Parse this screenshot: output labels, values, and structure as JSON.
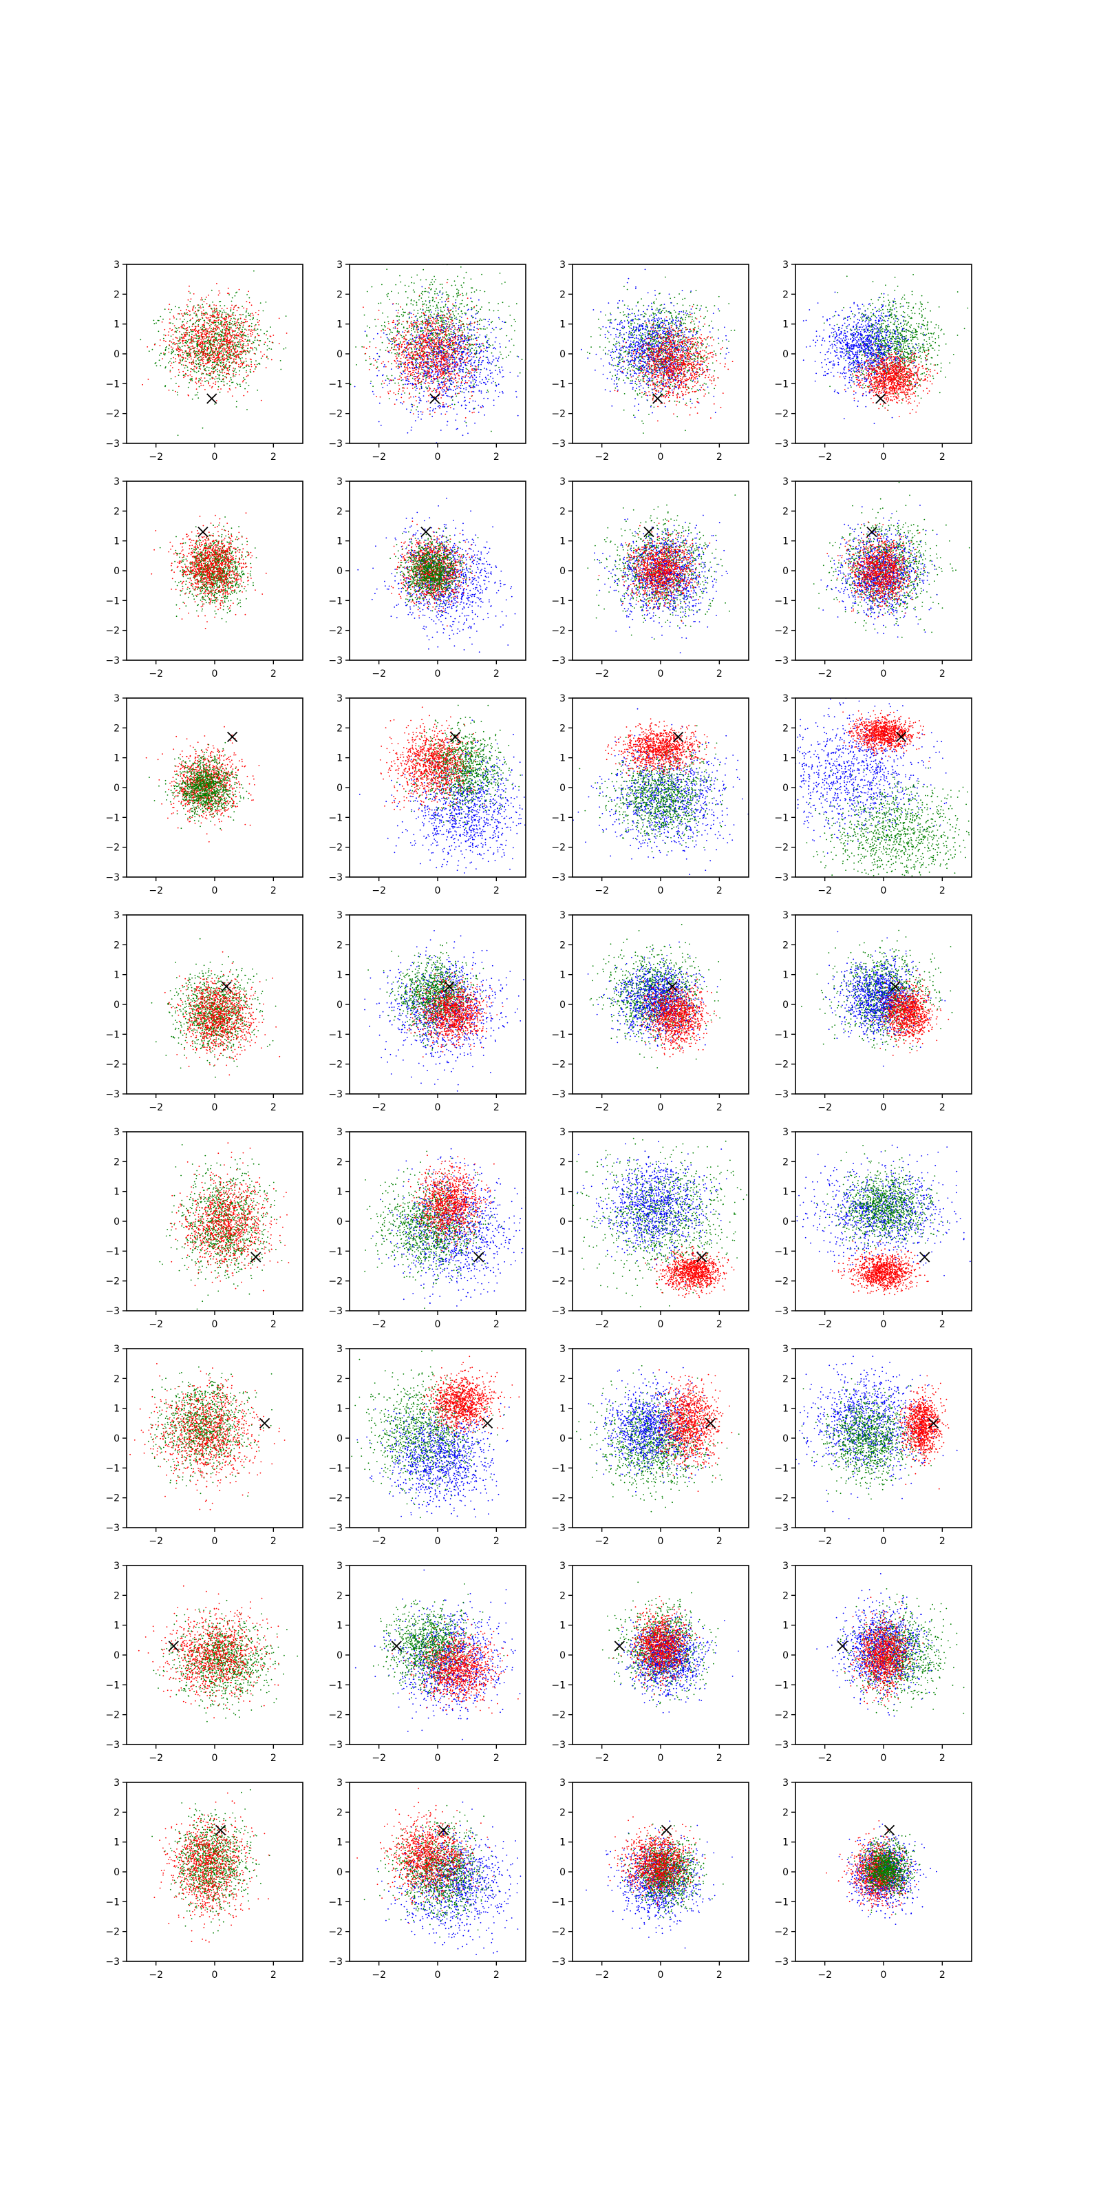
{
  "figure": {
    "layout": {
      "rows": 8,
      "cols": 4
    },
    "axis_style": {
      "grid": false,
      "legend": "none",
      "marker_symbol": "x"
    },
    "colors": {
      "red": "#ff0000",
      "green": "#008000",
      "blue": "#0000ff",
      "marker": "#000000"
    }
  },
  "chart_data": {
    "type": "scatter",
    "xlim": [
      -3,
      3
    ],
    "ylim": [
      -3,
      3
    ],
    "xticks": [
      -2,
      0,
      2
    ],
    "yticks": [
      -3,
      -2,
      -1,
      0,
      1,
      2,
      3
    ],
    "xtick_labels": [
      "−2",
      "0",
      "2"
    ],
    "ytick_labels": [
      "−3",
      "−2",
      "−1",
      "0",
      "1",
      "2",
      "3"
    ],
    "rows": [
      {
        "marker": [
          -0.1,
          -1.5
        ],
        "panels": [
          {
            "clusters": [
              {
                "color": "green",
                "cx": 0.0,
                "cy": 0.3,
                "sx": 0.95,
                "sy": 0.85
              },
              {
                "color": "red",
                "cx": 0.0,
                "cy": 0.4,
                "sx": 0.9,
                "sy": 0.8
              }
            ]
          },
          {
            "clusters": [
              {
                "color": "green",
                "cx": 0.0,
                "cy": 0.6,
                "sx": 1.3,
                "sy": 1.1
              },
              {
                "color": "blue",
                "cx": 0.3,
                "cy": -0.3,
                "sx": 1.1,
                "sy": 1.0
              },
              {
                "color": "red",
                "cx": -0.2,
                "cy": 0.0,
                "sx": 0.85,
                "sy": 0.85
              }
            ]
          },
          {
            "clusters": [
              {
                "color": "green",
                "cx": 0.0,
                "cy": 0.2,
                "sx": 1.0,
                "sy": 0.95
              },
              {
                "color": "blue",
                "cx": -0.2,
                "cy": 0.1,
                "sx": 0.9,
                "sy": 0.85
              },
              {
                "color": "red",
                "cx": 0.5,
                "cy": -0.3,
                "sx": 0.75,
                "sy": 0.7
              }
            ]
          },
          {
            "clusters": [
              {
                "color": "green",
                "cx": 0.4,
                "cy": 0.3,
                "sx": 0.9,
                "sy": 0.85
              },
              {
                "color": "blue",
                "cx": -0.6,
                "cy": 0.2,
                "sx": 0.8,
                "sy": 0.75
              },
              {
                "color": "red",
                "cx": 0.3,
                "cy": -0.8,
                "sx": 0.6,
                "sy": 0.45
              }
            ]
          }
        ]
      },
      {
        "marker": [
          -0.4,
          1.3
        ],
        "panels": [
          {
            "clusters": [
              {
                "color": "green",
                "cx": 0.0,
                "cy": 0.0,
                "sx": 0.6,
                "sy": 0.65
              },
              {
                "color": "red",
                "cx": -0.1,
                "cy": 0.1,
                "sx": 0.65,
                "sy": 0.7
              }
            ]
          },
          {
            "clusters": [
              {
                "color": "blue",
                "cx": 0.3,
                "cy": -0.3,
                "sx": 1.0,
                "sy": 0.95
              },
              {
                "color": "red",
                "cx": -0.2,
                "cy": 0.0,
                "sx": 0.6,
                "sy": 0.6
              },
              {
                "color": "green",
                "cx": -0.2,
                "cy": 0.0,
                "sx": 0.55,
                "sy": 0.55
              }
            ]
          },
          {
            "clusters": [
              {
                "color": "green",
                "cx": 0.0,
                "cy": 0.1,
                "sx": 0.95,
                "sy": 0.9
              },
              {
                "color": "blue",
                "cx": 0.1,
                "cy": -0.2,
                "sx": 0.9,
                "sy": 0.85
              },
              {
                "color": "red",
                "cx": 0.0,
                "cy": 0.0,
                "sx": 0.6,
                "sy": 0.6
              }
            ]
          },
          {
            "clusters": [
              {
                "color": "green",
                "cx": 0.1,
                "cy": 0.1,
                "sx": 0.9,
                "sy": 0.9
              },
              {
                "color": "blue",
                "cx": -0.1,
                "cy": -0.1,
                "sx": 0.8,
                "sy": 0.8
              },
              {
                "color": "red",
                "cx": -0.1,
                "cy": 0.0,
                "sx": 0.55,
                "sy": 0.6
              }
            ]
          }
        ]
      },
      {
        "marker": [
          0.6,
          1.7
        ],
        "panels": [
          {
            "clusters": [
              {
                "color": "red",
                "cx": -0.3,
                "cy": 0.1,
                "sx": 0.65,
                "sy": 0.65
              },
              {
                "color": "green",
                "cx": -0.3,
                "cy": 0.0,
                "sx": 0.55,
                "sy": 0.55
              }
            ]
          },
          {
            "clusters": [
              {
                "color": "blue",
                "cx": 1.0,
                "cy": -0.8,
                "sx": 1.1,
                "sy": 1.0
              },
              {
                "color": "green",
                "cx": 0.9,
                "cy": 0.6,
                "sx": 0.8,
                "sy": 0.8
              },
              {
                "color": "red",
                "cx": -0.2,
                "cy": 0.8,
                "sx": 0.75,
                "sy": 0.7
              }
            ]
          },
          {
            "clusters": [
              {
                "color": "blue",
                "cx": 0.3,
                "cy": -0.3,
                "sx": 1.2,
                "sy": 1.0
              },
              {
                "color": "green",
                "cx": 0.0,
                "cy": -0.3,
                "sx": 0.95,
                "sy": 0.8
              },
              {
                "color": "red",
                "cx": 0.0,
                "cy": 1.3,
                "sx": 0.75,
                "sy": 0.4
              }
            ]
          },
          {
            "clusters": [
              {
                "color": "blue",
                "cx": -1.0,
                "cy": 0.5,
                "sx": 1.3,
                "sy": 1.1
              },
              {
                "color": "green",
                "cx": 0.5,
                "cy": -1.5,
                "sx": 1.3,
                "sy": 0.9
              },
              {
                "color": "red",
                "cx": 0.0,
                "cy": 1.8,
                "sx": 0.6,
                "sy": 0.3
              }
            ]
          }
        ]
      },
      {
        "marker": [
          0.4,
          0.6
        ],
        "panels": [
          {
            "clusters": [
              {
                "color": "green",
                "cx": 0.0,
                "cy": -0.3,
                "sx": 0.75,
                "sy": 0.75
              },
              {
                "color": "red",
                "cx": 0.1,
                "cy": -0.4,
                "sx": 0.7,
                "sy": 0.7
              }
            ]
          },
          {
            "clusters": [
              {
                "color": "blue",
                "cx": 0.2,
                "cy": -0.2,
                "sx": 1.1,
                "sy": 1.0
              },
              {
                "color": "green",
                "cx": -0.1,
                "cy": 0.3,
                "sx": 0.7,
                "sy": 0.7
              },
              {
                "color": "red",
                "cx": 0.5,
                "cy": -0.3,
                "sx": 0.6,
                "sy": 0.55
              }
            ]
          },
          {
            "clusters": [
              {
                "color": "green",
                "cx": -0.2,
                "cy": 0.3,
                "sx": 0.9,
                "sy": 0.85
              },
              {
                "color": "blue",
                "cx": -0.1,
                "cy": 0.1,
                "sx": 0.75,
                "sy": 0.7
              },
              {
                "color": "red",
                "cx": 0.5,
                "cy": -0.4,
                "sx": 0.55,
                "sy": 0.55
              }
            ]
          },
          {
            "clusters": [
              {
                "color": "green",
                "cx": 0.1,
                "cy": 0.3,
                "sx": 0.9,
                "sy": 0.8
              },
              {
                "color": "blue",
                "cx": -0.2,
                "cy": 0.2,
                "sx": 0.75,
                "sy": 0.7
              },
              {
                "color": "red",
                "cx": 0.8,
                "cy": -0.3,
                "sx": 0.45,
                "sy": 0.5
              }
            ]
          }
        ]
      },
      {
        "marker": [
          1.4,
          -1.2
        ],
        "panels": [
          {
            "clusters": [
              {
                "color": "green",
                "cx": 0.3,
                "cy": -0.1,
                "sx": 0.85,
                "sy": 0.95
              },
              {
                "color": "red",
                "cx": 0.4,
                "cy": -0.1,
                "sx": 0.8,
                "sy": 0.9
              }
            ]
          },
          {
            "clusters": [
              {
                "color": "blue",
                "cx": 0.6,
                "cy": -0.3,
                "sx": 1.1,
                "sy": 1.1
              },
              {
                "color": "green",
                "cx": -0.3,
                "cy": -0.2,
                "sx": 0.9,
                "sy": 0.9
              },
              {
                "color": "red",
                "cx": 0.4,
                "cy": 0.6,
                "sx": 0.6,
                "sy": 0.65
              }
            ]
          },
          {
            "clusters": [
              {
                "color": "green",
                "cx": 0.0,
                "cy": 0.2,
                "sx": 1.3,
                "sy": 1.2
              },
              {
                "color": "blue",
                "cx": -0.2,
                "cy": 0.5,
                "sx": 1.0,
                "sy": 0.9
              },
              {
                "color": "red",
                "cx": 1.1,
                "cy": -1.7,
                "sx": 0.55,
                "sy": 0.35
              }
            ]
          },
          {
            "clusters": [
              {
                "color": "blue",
                "cx": 0.0,
                "cy": 0.3,
                "sx": 1.3,
                "sy": 0.85
              },
              {
                "color": "green",
                "cx": 0.0,
                "cy": 0.5,
                "sx": 0.85,
                "sy": 0.7
              },
              {
                "color": "red",
                "cx": 0.0,
                "cy": -1.7,
                "sx": 0.6,
                "sy": 0.35
              }
            ]
          }
        ]
      },
      {
        "marker": [
          1.7,
          0.5
        ],
        "panels": [
          {
            "clusters": [
              {
                "color": "green",
                "cx": -0.4,
                "cy": 0.4,
                "sx": 0.85,
                "sy": 0.85
              },
              {
                "color": "red",
                "cx": -0.3,
                "cy": 0.2,
                "sx": 0.95,
                "sy": 0.95
              }
            ]
          },
          {
            "clusters": [
              {
                "color": "green",
                "cx": -0.5,
                "cy": 0.2,
                "sx": 1.0,
                "sy": 1.0
              },
              {
                "color": "blue",
                "cx": 0.1,
                "cy": -0.7,
                "sx": 1.0,
                "sy": 0.9
              },
              {
                "color": "red",
                "cx": 0.8,
                "cy": 1.2,
                "sx": 0.6,
                "sy": 0.5
              }
            ]
          },
          {
            "clusters": [
              {
                "color": "green",
                "cx": -0.3,
                "cy": -0.2,
                "sx": 1.0,
                "sy": 0.9
              },
              {
                "color": "blue",
                "cx": -0.3,
                "cy": 0.3,
                "sx": 0.85,
                "sy": 0.8
              },
              {
                "color": "red",
                "cx": 1.0,
                "cy": 0.5,
                "sx": 0.55,
                "sy": 0.75
              }
            ]
          },
          {
            "clusters": [
              {
                "color": "blue",
                "cx": -0.6,
                "cy": 0.5,
                "sx": 1.1,
                "sy": 0.95
              },
              {
                "color": "green",
                "cx": -0.5,
                "cy": 0.0,
                "sx": 0.8,
                "sy": 0.8
              },
              {
                "color": "red",
                "cx": 1.3,
                "cy": 0.4,
                "sx": 0.35,
                "sy": 0.6
              }
            ]
          }
        ]
      },
      {
        "marker": [
          -1.4,
          0.3
        ],
        "panels": [
          {
            "clusters": [
              {
                "color": "green",
                "cx": 0.3,
                "cy": -0.2,
                "sx": 0.9,
                "sy": 0.75
              },
              {
                "color": "red",
                "cx": 0.0,
                "cy": 0.0,
                "sx": 0.95,
                "sy": 0.8
              }
            ]
          },
          {
            "clusters": [
              {
                "color": "blue",
                "cx": 0.4,
                "cy": -0.2,
                "sx": 1.0,
                "sy": 1.0
              },
              {
                "color": "green",
                "cx": -0.3,
                "cy": 0.3,
                "sx": 0.8,
                "sy": 0.75
              },
              {
                "color": "red",
                "cx": 0.7,
                "cy": -0.4,
                "sx": 0.7,
                "sy": 0.6
              }
            ]
          },
          {
            "clusters": [
              {
                "color": "green",
                "cx": 0.1,
                "cy": 0.2,
                "sx": 0.8,
                "sy": 0.8
              },
              {
                "color": "blue",
                "cx": 0.2,
                "cy": -0.1,
                "sx": 0.7,
                "sy": 0.7
              },
              {
                "color": "red",
                "cx": 0.0,
                "cy": 0.3,
                "sx": 0.5,
                "sy": 0.6
              }
            ]
          },
          {
            "clusters": [
              {
                "color": "green",
                "cx": 0.5,
                "cy": 0.0,
                "sx": 0.85,
                "sy": 0.85
              },
              {
                "color": "blue",
                "cx": -0.1,
                "cy": 0.2,
                "sx": 0.8,
                "sy": 0.8
              },
              {
                "color": "red",
                "cx": 0.0,
                "cy": 0.0,
                "sx": 0.5,
                "sy": 0.65
              }
            ]
          }
        ]
      },
      {
        "marker": [
          0.2,
          1.4
        ],
        "panels": [
          {
            "clusters": [
              {
                "color": "green",
                "cx": -0.1,
                "cy": 0.3,
                "sx": 0.7,
                "sy": 0.85
              },
              {
                "color": "red",
                "cx": -0.2,
                "cy": 0.2,
                "sx": 0.75,
                "sy": 0.9
              }
            ]
          },
          {
            "clusters": [
              {
                "color": "blue",
                "cx": 0.6,
                "cy": -0.4,
                "sx": 1.0,
                "sy": 0.95
              },
              {
                "color": "green",
                "cx": 0.1,
                "cy": 0.0,
                "sx": 0.85,
                "sy": 0.85
              },
              {
                "color": "red",
                "cx": -0.3,
                "cy": 0.5,
                "sx": 0.75,
                "sy": 0.7
              }
            ]
          },
          {
            "clusters": [
              {
                "color": "blue",
                "cx": 0.0,
                "cy": -0.3,
                "sx": 0.75,
                "sy": 0.75
              },
              {
                "color": "green",
                "cx": 0.2,
                "cy": 0.0,
                "sx": 0.6,
                "sy": 0.6
              },
              {
                "color": "red",
                "cx": -0.1,
                "cy": 0.3,
                "sx": 0.6,
                "sy": 0.6
              }
            ]
          },
          {
            "clusters": [
              {
                "color": "blue",
                "cx": 0.0,
                "cy": -0.1,
                "sx": 0.6,
                "sy": 0.6
              },
              {
                "color": "red",
                "cx": -0.2,
                "cy": 0.0,
                "sx": 0.5,
                "sy": 0.55
              },
              {
                "color": "green",
                "cx": 0.1,
                "cy": 0.1,
                "sx": 0.45,
                "sy": 0.45
              }
            ]
          }
        ]
      }
    ]
  }
}
